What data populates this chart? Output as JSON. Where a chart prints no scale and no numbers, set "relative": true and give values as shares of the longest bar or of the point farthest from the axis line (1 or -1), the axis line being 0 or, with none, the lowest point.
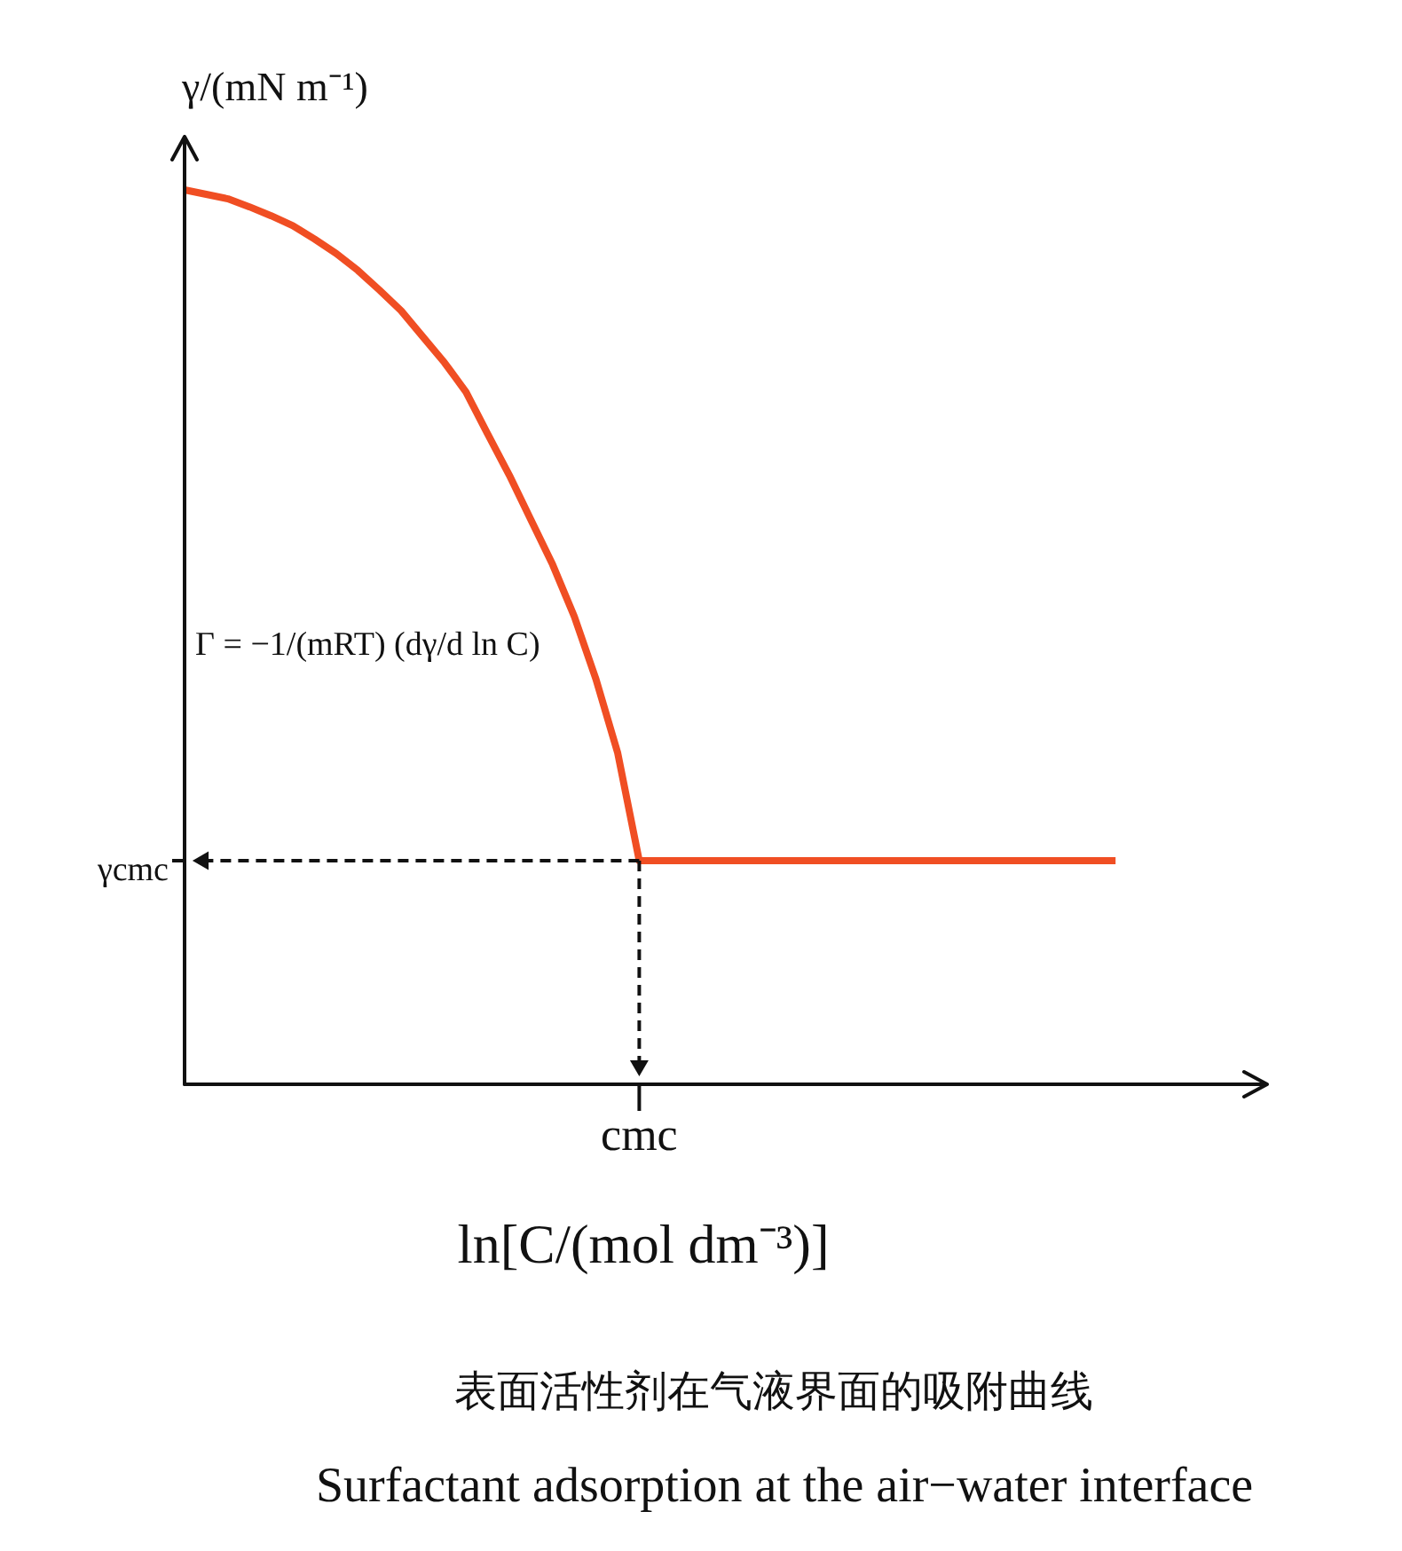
{
  "chart_data": {
    "type": "line",
    "relative": true,
    "xlabel": "ln[C/(mol dm⁻³)]",
    "ylabel": "γ/(mN m⁻¹)",
    "categories": [
      null,
      null,
      null,
      null,
      null,
      null,
      null,
      null,
      null,
      null,
      null,
      null,
      null,
      null,
      null,
      null,
      null,
      null,
      null,
      null,
      null,
      null,
      null,
      null,
      null,
      null,
      null,
      null,
      null,
      null,
      null,
      null,
      null,
      null,
      null,
      null,
      null,
      null,
      null,
      null,
      null,
      null,
      null,
      null,
      null,
      null,
      null,
      null,
      null,
      null,
      null
    ],
    "series": [
      {
        "color": "#f04e23",
        "values": [
          1,
          0.995,
          0.99,
          0.981,
          0.971,
          0.96,
          0.945,
          0.929,
          0.91,
          0.888,
          0.865,
          0.836,
          0.807,
          0.774,
          0.727,
          0.681,
          0.631,
          0.581,
          0.523,
          0.453,
          0.371,
          0.25,
          0.25,
          0.25,
          0.25,
          0.25,
          0.25,
          0.25,
          0.25,
          0.25,
          0.25,
          0.25,
          0.25,
          0.25,
          0.25,
          0.25,
          0.25,
          0.25,
          0.25,
          0.25,
          0.25,
          0.25,
          0.25,
          0.25,
          null,
          null,
          null,
          null,
          null,
          null,
          null
        ]
      }
    ],
    "line_style": "solid",
    "annotations": [
      "γcmc",
      "cmc",
      "Γ = −1/(mRT) (dγ/d ln C)",
      "表面活性剂在气液界面的吸附曲线",
      "Surfactant adsorption at the air−water interface"
    ]
  }
}
